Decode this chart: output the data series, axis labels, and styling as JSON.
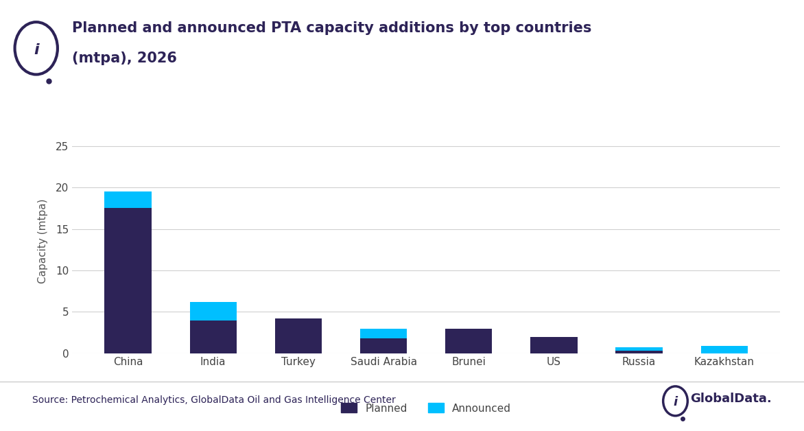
{
  "title_line1": "Planned and announced PTA capacity additions by top countries",
  "title_line2": "(mtpa), 2026",
  "ylabel": "Capacity (mtpa)",
  "source": "Source: Petrochemical Analytics, GlobalData Oil and Gas Intelligence Center",
  "globaldata_text": "GlobalData.",
  "categories": [
    "China",
    "India",
    "Turkey",
    "Saudi Arabia",
    "Brunei",
    "US",
    "Russia",
    "Kazakhstan"
  ],
  "planned": [
    17.5,
    4.0,
    4.2,
    1.8,
    3.0,
    2.0,
    0.3,
    0.0
  ],
  "announced": [
    2.0,
    2.2,
    0.0,
    1.2,
    0.0,
    0.0,
    0.4,
    0.9
  ],
  "planned_color": "#2d2357",
  "announced_color": "#00bfff",
  "bg_color": "#ffffff",
  "grid_color": "#d0d0d0",
  "text_color": "#2d2357",
  "source_color": "#2d2357",
  "yticks": [
    0,
    5,
    10,
    15,
    20,
    25
  ],
  "ylim": [
    0,
    27
  ],
  "legend_labels": [
    "Planned",
    "Announced"
  ],
  "bar_width": 0.55
}
